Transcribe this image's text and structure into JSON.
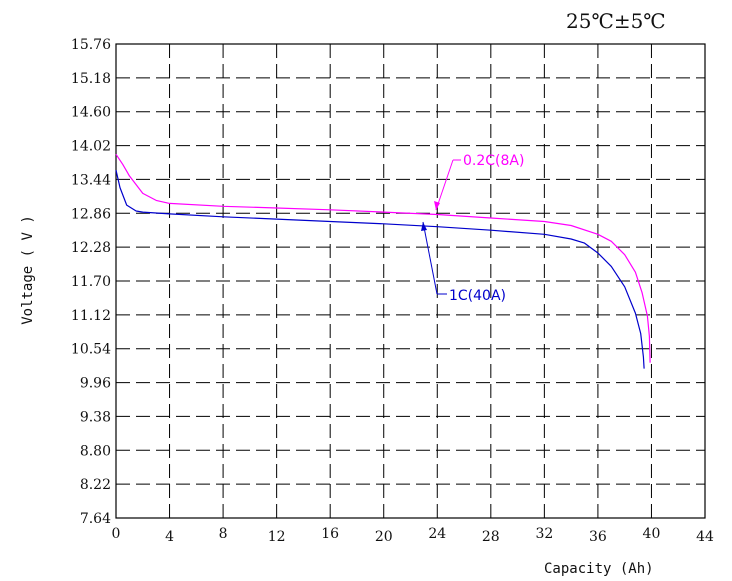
{
  "chart_data": {
    "type": "line",
    "title": "",
    "annotation": "25℃±5℃",
    "xlabel": "Capacity (Ah)",
    "ylabel": "Voltage ( V )",
    "xlim": [
      0,
      44
    ],
    "ylim": [
      7.64,
      15.76
    ],
    "x_ticks": [
      "0",
      "4",
      "8",
      "12",
      "16",
      "20",
      "24",
      "28",
      "32",
      "36",
      "40",
      "44"
    ],
    "y_ticks": [
      "15.76",
      "15.18",
      "14.60",
      "14.02",
      "13.44",
      "12.86",
      "12.28",
      "11.70",
      "11.12",
      "10.54",
      "9.96",
      "9.38",
      "8.80",
      "8.22",
      "7.64"
    ],
    "grid": true,
    "series": [
      {
        "name": "0.2C(8A)",
        "color": "#ff00ff",
        "points": [
          [
            0,
            13.87
          ],
          [
            0.5,
            13.7
          ],
          [
            1,
            13.5
          ],
          [
            2,
            13.2
          ],
          [
            3,
            13.08
          ],
          [
            4,
            13.03
          ],
          [
            8,
            12.98
          ],
          [
            12,
            12.95
          ],
          [
            16,
            12.92
          ],
          [
            20,
            12.88
          ],
          [
            24,
            12.84
          ],
          [
            28,
            12.78
          ],
          [
            32,
            12.72
          ],
          [
            34,
            12.65
          ],
          [
            36,
            12.5
          ],
          [
            37,
            12.38
          ],
          [
            38,
            12.15
          ],
          [
            38.8,
            11.85
          ],
          [
            39.3,
            11.5
          ],
          [
            39.7,
            11.1
          ],
          [
            39.85,
            10.75
          ],
          [
            39.9,
            10.3
          ]
        ]
      },
      {
        "name": "1C(40A)",
        "color": "#0000cc",
        "points": [
          [
            0,
            13.6
          ],
          [
            0.3,
            13.3
          ],
          [
            0.8,
            13.0
          ],
          [
            1.5,
            12.9
          ],
          [
            2,
            12.88
          ],
          [
            4,
            12.85
          ],
          [
            8,
            12.8
          ],
          [
            12,
            12.76
          ],
          [
            16,
            12.72
          ],
          [
            20,
            12.68
          ],
          [
            24,
            12.63
          ],
          [
            28,
            12.57
          ],
          [
            32,
            12.5
          ],
          [
            34,
            12.42
          ],
          [
            35,
            12.35
          ],
          [
            36,
            12.18
          ],
          [
            37,
            11.95
          ],
          [
            38,
            11.6
          ],
          [
            38.8,
            11.15
          ],
          [
            39.2,
            10.8
          ],
          [
            39.4,
            10.4
          ],
          [
            39.45,
            10.2
          ]
        ]
      }
    ]
  }
}
